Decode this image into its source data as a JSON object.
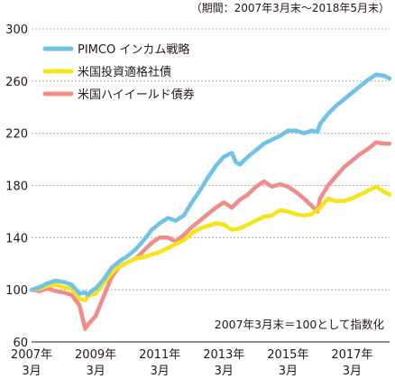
{
  "chart_data": {
    "type": "line",
    "period_label": "（期間：2007年3月末〜2018年5月末）",
    "note": "2007年3月末＝100として指数化",
    "ylim": [
      60,
      300
    ],
    "yticks": [
      60,
      100,
      140,
      180,
      220,
      260,
      300
    ],
    "xlim": [
      2007.25,
      2018.42
    ],
    "xticks": [
      {
        "x": 2007.25,
        "year": "2007年",
        "month": "3月"
      },
      {
        "x": 2009.25,
        "year": "2009年",
        "month": "3月"
      },
      {
        "x": 2011.25,
        "year": "2011年",
        "month": "3月"
      },
      {
        "x": 2013.25,
        "year": "2013年",
        "month": "3月"
      },
      {
        "x": 2015.25,
        "year": "2015年",
        "month": "3月"
      },
      {
        "x": 2017.25,
        "year": "2017年",
        "month": "3月"
      }
    ],
    "grid": true,
    "legend_position": "top-left",
    "series": [
      {
        "name": "PIMCO インカム戦略",
        "color": "#6fc3e8",
        "points": [
          [
            2007.25,
            100
          ],
          [
            2007.5,
            102
          ],
          [
            2007.75,
            105
          ],
          [
            2008.0,
            107
          ],
          [
            2008.25,
            106
          ],
          [
            2008.5,
            104
          ],
          [
            2008.75,
            97
          ],
          [
            2008.92,
            98
          ],
          [
            2009.0,
            96
          ],
          [
            2009.17,
            100
          ],
          [
            2009.25,
            101
          ],
          [
            2009.5,
            108
          ],
          [
            2009.75,
            117
          ],
          [
            2010.0,
            122
          ],
          [
            2010.25,
            126
          ],
          [
            2010.5,
            131
          ],
          [
            2010.75,
            138
          ],
          [
            2011.0,
            146
          ],
          [
            2011.25,
            151
          ],
          [
            2011.5,
            155
          ],
          [
            2011.75,
            153
          ],
          [
            2012.0,
            157
          ],
          [
            2012.25,
            167
          ],
          [
            2012.5,
            176
          ],
          [
            2012.75,
            186
          ],
          [
            2013.0,
            195
          ],
          [
            2013.25,
            202
          ],
          [
            2013.5,
            205
          ],
          [
            2013.62,
            198
          ],
          [
            2013.75,
            196
          ],
          [
            2014.0,
            202
          ],
          [
            2014.25,
            207
          ],
          [
            2014.5,
            212
          ],
          [
            2014.75,
            215
          ],
          [
            2015.0,
            218
          ],
          [
            2015.25,
            222
          ],
          [
            2015.5,
            222
          ],
          [
            2015.75,
            220
          ],
          [
            2016.0,
            222
          ],
          [
            2016.17,
            221
          ],
          [
            2016.25,
            227
          ],
          [
            2016.5,
            235
          ],
          [
            2016.75,
            241
          ],
          [
            2017.0,
            246
          ],
          [
            2017.25,
            251
          ],
          [
            2017.5,
            256
          ],
          [
            2017.75,
            261
          ],
          [
            2018.0,
            265
          ],
          [
            2018.25,
            264
          ],
          [
            2018.42,
            262
          ]
        ]
      },
      {
        "name": "米国投資適格社債",
        "color": "#f7e31a",
        "points": [
          [
            2007.25,
            100
          ],
          [
            2007.5,
            101
          ],
          [
            2007.75,
            103
          ],
          [
            2008.0,
            104
          ],
          [
            2008.25,
            102
          ],
          [
            2008.5,
            101
          ],
          [
            2008.75,
            93
          ],
          [
            2008.92,
            92
          ],
          [
            2009.0,
            95
          ],
          [
            2009.25,
            97
          ],
          [
            2009.5,
            105
          ],
          [
            2009.75,
            113
          ],
          [
            2010.0,
            118
          ],
          [
            2010.25,
            121
          ],
          [
            2010.5,
            124
          ],
          [
            2010.75,
            125
          ],
          [
            2011.0,
            127
          ],
          [
            2011.25,
            129
          ],
          [
            2011.5,
            132
          ],
          [
            2011.75,
            135
          ],
          [
            2012.0,
            138
          ],
          [
            2012.25,
            143
          ],
          [
            2012.5,
            147
          ],
          [
            2012.75,
            149
          ],
          [
            2013.0,
            151
          ],
          [
            2013.25,
            150
          ],
          [
            2013.5,
            146
          ],
          [
            2013.75,
            147
          ],
          [
            2014.0,
            150
          ],
          [
            2014.25,
            153
          ],
          [
            2014.5,
            156
          ],
          [
            2014.75,
            157
          ],
          [
            2015.0,
            161
          ],
          [
            2015.25,
            160
          ],
          [
            2015.5,
            158
          ],
          [
            2015.75,
            157
          ],
          [
            2016.0,
            158
          ],
          [
            2016.25,
            163
          ],
          [
            2016.5,
            170
          ],
          [
            2016.75,
            168
          ],
          [
            2017.0,
            168
          ],
          [
            2017.25,
            170
          ],
          [
            2017.5,
            173
          ],
          [
            2017.75,
            176
          ],
          [
            2018.0,
            179
          ],
          [
            2018.25,
            175
          ],
          [
            2018.42,
            173
          ]
        ]
      },
      {
        "name": "米国ハイイールド債券",
        "color": "#f18c86",
        "points": [
          [
            2007.25,
            100
          ],
          [
            2007.5,
            99
          ],
          [
            2007.75,
            101
          ],
          [
            2008.0,
            99
          ],
          [
            2008.25,
            98
          ],
          [
            2008.5,
            96
          ],
          [
            2008.75,
            88
          ],
          [
            2008.92,
            70
          ],
          [
            2009.0,
            73
          ],
          [
            2009.25,
            80
          ],
          [
            2009.5,
            95
          ],
          [
            2009.75,
            110
          ],
          [
            2010.0,
            118
          ],
          [
            2010.25,
            121
          ],
          [
            2010.5,
            124
          ],
          [
            2010.75,
            130
          ],
          [
            2011.0,
            136
          ],
          [
            2011.25,
            140
          ],
          [
            2011.5,
            140
          ],
          [
            2011.75,
            137
          ],
          [
            2012.0,
            142
          ],
          [
            2012.25,
            148
          ],
          [
            2012.5,
            153
          ],
          [
            2012.75,
            158
          ],
          [
            2013.0,
            163
          ],
          [
            2013.25,
            167
          ],
          [
            2013.5,
            163
          ],
          [
            2013.75,
            169
          ],
          [
            2014.0,
            173
          ],
          [
            2014.25,
            179
          ],
          [
            2014.5,
            183
          ],
          [
            2014.75,
            179
          ],
          [
            2015.0,
            181
          ],
          [
            2015.25,
            179
          ],
          [
            2015.5,
            175
          ],
          [
            2015.75,
            170
          ],
          [
            2016.0,
            164
          ],
          [
            2016.17,
            160
          ],
          [
            2016.25,
            170
          ],
          [
            2016.5,
            180
          ],
          [
            2016.75,
            187
          ],
          [
            2017.0,
            194
          ],
          [
            2017.25,
            199
          ],
          [
            2017.5,
            204
          ],
          [
            2017.75,
            208
          ],
          [
            2018.0,
            213
          ],
          [
            2018.25,
            212
          ],
          [
            2018.42,
            212
          ]
        ]
      }
    ]
  }
}
